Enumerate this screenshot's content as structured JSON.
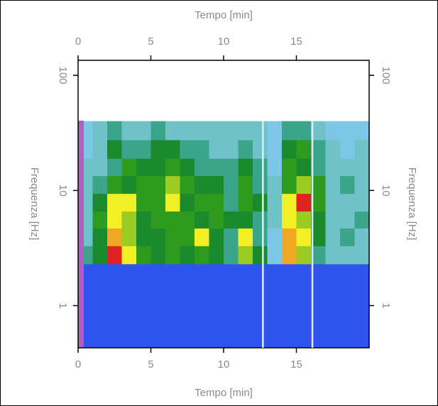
{
  "chart_data": {
    "type": "heatmap",
    "x_label": "Tempo [min]",
    "y_label": "Frequenza [Hz]",
    "xlim": [
      0,
      20
    ],
    "xticks": [
      0,
      5,
      10,
      15
    ],
    "ylim": [
      0.43,
      135
    ],
    "yticks": [
      1,
      10,
      100
    ],
    "log_y": true,
    "x_bins": [
      0,
      1,
      2,
      3,
      4,
      5,
      6,
      7,
      8,
      9,
      10,
      11,
      12,
      13,
      14,
      15,
      16,
      17,
      18,
      19,
      20
    ],
    "y_bins": [
      0.43,
      2.3,
      3.3,
      4.7,
      6.6,
      9.4,
      13.4,
      19,
      27.5,
      40
    ],
    "zlim": [
      0,
      10
    ],
    "colorscale": [
      "#1212dd",
      "#2f55ee",
      "#7cc6e6",
      "#6fc3c8",
      "#3aa58a",
      "#1b8a2c",
      "#2e9a1e",
      "#9ccc22",
      "#f2f024",
      "#f0a822",
      "#e02222"
    ],
    "z": [
      [
        1,
        1,
        1,
        1,
        1,
        1,
        1,
        1,
        1,
        1,
        1,
        1,
        1,
        1,
        1,
        1,
        1,
        1,
        1,
        1
      ],
      [
        4,
        5,
        10,
        8,
        6,
        5,
        6,
        5,
        6,
        5,
        4,
        7,
        5,
        2,
        9,
        7,
        4,
        3,
        3,
        3
      ],
      [
        3,
        5,
        9,
        7,
        5,
        5,
        6,
        6,
        8,
        5,
        4,
        8,
        4,
        2,
        9,
        8,
        5,
        3,
        4,
        3
      ],
      [
        3,
        6,
        8,
        7,
        5,
        6,
        6,
        6,
        5,
        6,
        5,
        5,
        4,
        3,
        8,
        7,
        5,
        3,
        3,
        4
      ],
      [
        3,
        5,
        8,
        8,
        6,
        6,
        8,
        5,
        6,
        6,
        4,
        6,
        5,
        3,
        8,
        10,
        6,
        3,
        3,
        3
      ],
      [
        3,
        4,
        6,
        5,
        6,
        6,
        7,
        6,
        5,
        5,
        4,
        6,
        4,
        3,
        6,
        7,
        6,
        3,
        4,
        3
      ],
      [
        3,
        3,
        4,
        6,
        5,
        5,
        6,
        5,
        4,
        4,
        4,
        5,
        4,
        2,
        6,
        5,
        4,
        3,
        3,
        3
      ],
      [
        2,
        3,
        5,
        4,
        4,
        5,
        5,
        4,
        4,
        3,
        3,
        4,
        3,
        2,
        5,
        6,
        4,
        3,
        2,
        3
      ],
      [
        2,
        3,
        4,
        3,
        3,
        4,
        3,
        3,
        3,
        3,
        3,
        3,
        3,
        2,
        4,
        4,
        3,
        2,
        2,
        2
      ]
    ],
    "vlines": [
      12.7,
      16.1
    ]
  }
}
